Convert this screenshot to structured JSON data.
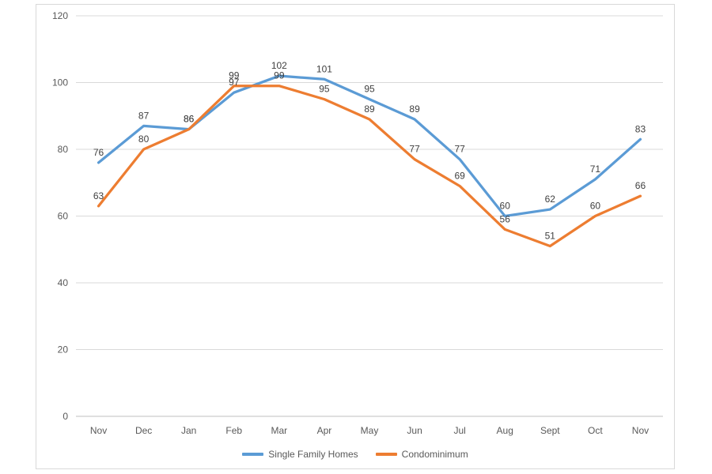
{
  "chart_data": {
    "type": "line",
    "title": "",
    "xlabel": "",
    "ylabel": "",
    "categories": [
      "Nov",
      "Dec",
      "Jan",
      "Feb",
      "Mar",
      "Apr",
      "May",
      "Jun",
      "Jul",
      "Aug",
      "Sept",
      "Oct",
      "Nov"
    ],
    "series": [
      {
        "name": "Single Family Homes",
        "color": "#5B9BD5",
        "values": [
          76,
          87,
          86,
          97,
          102,
          101,
          95,
          89,
          77,
          60,
          62,
          71,
          83
        ]
      },
      {
        "name": "Condominimum",
        "color": "#ED7D31",
        "values": [
          63,
          80,
          86,
          99,
          99,
          95,
          89,
          77,
          69,
          56,
          51,
          60,
          66
        ]
      }
    ],
    "ylim": [
      0,
      120
    ],
    "yticks": [
      0,
      20,
      40,
      60,
      80,
      100,
      120
    ],
    "grid": true,
    "data_labels": true,
    "legend_position": "bottom",
    "colors": {
      "gridline": "#D9D9D9",
      "axis_line": "#BFBFBF",
      "axis_label": "#595959",
      "data_label": "#404040",
      "frame_border": "#D9D9D9",
      "background": "#FFFFFF"
    }
  }
}
